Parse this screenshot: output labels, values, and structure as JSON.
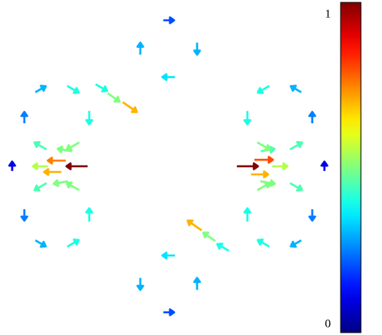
{
  "chart_data": {
    "type": "quiver",
    "x": [
      95,
      70,
      65,
      50,
      80,
      75,
      305,
      325,
      320,
      345,
      330,
      330,
      160,
      140,
      125,
      240,
      258,
      275,
      110,
      90,
      50,
      30,
      50,
      90,
      110,
      90,
      50,
      30,
      50,
      90,
      385,
      365,
      325,
      305,
      325,
      365,
      385,
      365,
      325,
      305,
      325,
      365,
      243,
      208,
      173,
      208,
      243,
      208,
      173,
      208,
      15,
      400
    ],
    "y": [
      205,
      198,
      212,
      205,
      185,
      225,
      205,
      197,
      215,
      205,
      225,
      185,
      132,
      120,
      108,
      278,
      292,
      305,
      145,
      110,
      110,
      145,
      180,
      180,
      265,
      230,
      230,
      265,
      300,
      300,
      145,
      110,
      110,
      145,
      180,
      180,
      265,
      230,
      230,
      265,
      300,
      300,
      60,
      25,
      60,
      95,
      350,
      315,
      350,
      385,
      205,
      205
    ],
    "angle": [
      180,
      180,
      180,
      180,
      170,
      190,
      0,
      0,
      0,
      0,
      350,
      10,
      -35,
      -35,
      -30,
      145,
      145,
      150,
      -90,
      -30,
      30,
      90,
      150,
      210,
      90,
      150,
      210,
      270,
      330,
      30,
      90,
      150,
      210,
      270,
      330,
      30,
      -90,
      -30,
      30,
      90,
      150,
      210,
      -90,
      0,
      90,
      180,
      90,
      180,
      270,
      0,
      90,
      90
    ],
    "magnitude": [
      1.0,
      0.75,
      0.7,
      0.55,
      0.5,
      0.5,
      1.0,
      0.8,
      0.7,
      0.55,
      0.5,
      0.45,
      0.7,
      0.5,
      0.4,
      0.7,
      0.5,
      0.4,
      0.4,
      0.4,
      0.3,
      0.25,
      0.45,
      0.5,
      0.4,
      0.5,
      0.45,
      0.25,
      0.3,
      0.4,
      0.25,
      0.3,
      0.4,
      0.4,
      0.5,
      0.45,
      0.25,
      0.45,
      0.5,
      0.4,
      0.4,
      0.3,
      0.3,
      0.2,
      0.3,
      0.35,
      0.3,
      0.35,
      0.3,
      0.2,
      0.1,
      0.1
    ],
    "xlim": [
      0,
      416
    ],
    "ylim": [
      410,
      0
    ],
    "colormap": "jet",
    "colorbar": {
      "lim": [
        0,
        1
      ],
      "ticks": [
        0,
        1
      ]
    }
  }
}
